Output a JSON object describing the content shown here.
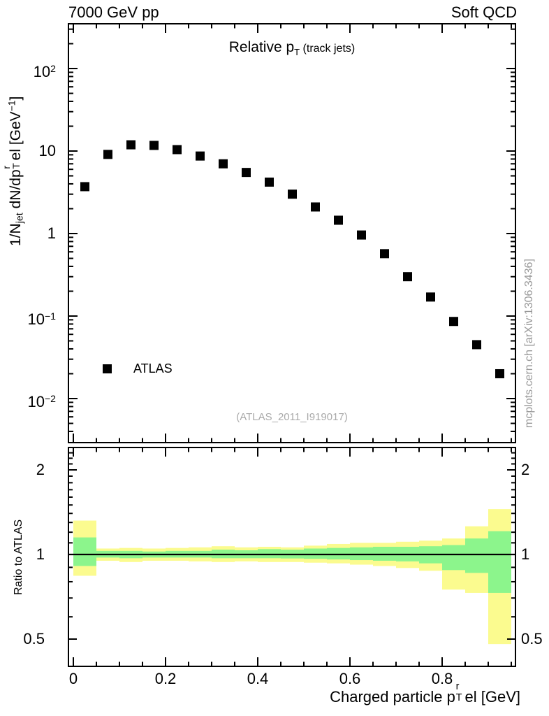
{
  "header": {
    "left": "7000 GeV pp",
    "right": "Soft QCD"
  },
  "titles": {
    "main_p1": "Relative p",
    "main_sub": "T",
    "main_p2": " (track jets)",
    "watermark": "(ATLAS_2011_I919017)",
    "side_note": "mcplots.cern.ch [arXiv:1306.3436]",
    "ratio_y": "Ratio to ATLAS",
    "x_parts": {
      "p1": "Charged particle p",
      "sup": "r",
      "sub": "T",
      "p2": "el [GeV]"
    },
    "y_parts": {
      "p1": "1/N",
      "sub1": "jet",
      "p2": " dN/dp",
      "sup": "r",
      "sub2": "T",
      "p3": "el [GeV",
      "sup2": "−1",
      "p4": "]"
    }
  },
  "legend": {
    "label": "ATLAS"
  },
  "colors": {
    "band_outer": "#fbfb8f",
    "band_inner": "#8cf58c",
    "marker": "#000000",
    "frame": "#000000",
    "watermark_text": "#a9a9a9",
    "side_note_text": "#999999"
  },
  "chart_data": {
    "type": "scatter",
    "title": "Relative pT (track jets)",
    "xlabel": "Charged particle pT^rel [GeV]",
    "ylabel": "1/Njet dN/dpT^rel [GeV^-1]",
    "x_scale": "linear",
    "y_scale": "log",
    "xlim": [
      -0.011,
      0.959
    ],
    "ylim": [
      0.0029,
      348
    ],
    "grid": false,
    "legend_position": "left-middle",
    "series": [
      {
        "name": "ATLAS",
        "marker": "filled-square",
        "color": "#000000",
        "x": [
          0.025,
          0.075,
          0.125,
          0.175,
          0.225,
          0.275,
          0.325,
          0.375,
          0.425,
          0.475,
          0.525,
          0.575,
          0.625,
          0.675,
          0.725,
          0.775,
          0.825,
          0.875,
          0.925
        ],
        "y": [
          3.7,
          9.1,
          11.9,
          11.7,
          10.4,
          8.7,
          7.0,
          5.5,
          4.2,
          3.0,
          2.1,
          1.45,
          0.96,
          0.57,
          0.3,
          0.17,
          0.086,
          0.045,
          0.02
        ]
      }
    ],
    "x_ticks": [
      {
        "v": 0,
        "label": "0"
      },
      {
        "v": 0.2,
        "label": "0.2"
      },
      {
        "v": 0.4,
        "label": "0.4"
      },
      {
        "v": 0.6,
        "label": "0.6"
      },
      {
        "v": 0.8,
        "label": "0.8"
      }
    ],
    "x_minor_step": 0.05,
    "y_ticks": [
      {
        "v": 100,
        "label": "10",
        "exp": "2"
      },
      {
        "v": 10,
        "label": "10",
        "exp": ""
      },
      {
        "v": 1,
        "label": "1",
        "exp": ""
      },
      {
        "v": 0.1,
        "label": "10",
        "exp": "−1"
      },
      {
        "v": 0.01,
        "label": "10",
        "exp": "−2"
      }
    ],
    "ratio_ticks": [
      {
        "v": 2,
        "label": "2"
      },
      {
        "v": 1,
        "label": "1"
      },
      {
        "v": 0.5,
        "label": "0.5"
      }
    ],
    "ratio": {
      "ylabel": "Ratio to ATLAS",
      "y_scale": "log",
      "ylim": [
        0.4,
        2.4
      ],
      "reference_line": 1,
      "bins": [
        {
          "x1": 0.0,
          "x2": 0.05,
          "outer": [
            0.84,
            1.32
          ],
          "inner": [
            0.91,
            1.15
          ]
        },
        {
          "x1": 0.05,
          "x2": 0.1,
          "outer": [
            0.95,
            1.05
          ],
          "inner": [
            0.975,
            1.03
          ]
        },
        {
          "x1": 0.1,
          "x2": 0.15,
          "outer": [
            0.94,
            1.055
          ],
          "inner": [
            0.97,
            1.03
          ]
        },
        {
          "x1": 0.15,
          "x2": 0.2,
          "outer": [
            0.95,
            1.05
          ],
          "inner": [
            0.975,
            1.025
          ]
        },
        {
          "x1": 0.2,
          "x2": 0.25,
          "outer": [
            0.95,
            1.055
          ],
          "inner": [
            0.975,
            1.03
          ]
        },
        {
          "x1": 0.25,
          "x2": 0.3,
          "outer": [
            0.945,
            1.06
          ],
          "inner": [
            0.975,
            1.03
          ]
        },
        {
          "x1": 0.3,
          "x2": 0.35,
          "outer": [
            0.94,
            1.07
          ],
          "inner": [
            0.97,
            1.04
          ]
        },
        {
          "x1": 0.35,
          "x2": 0.4,
          "outer": [
            0.945,
            1.06
          ],
          "inner": [
            0.97,
            1.035
          ]
        },
        {
          "x1": 0.4,
          "x2": 0.45,
          "outer": [
            0.94,
            1.065
          ],
          "inner": [
            0.97,
            1.045
          ]
        },
        {
          "x1": 0.45,
          "x2": 0.5,
          "outer": [
            0.94,
            1.06
          ],
          "inner": [
            0.968,
            1.04
          ]
        },
        {
          "x1": 0.5,
          "x2": 0.55,
          "outer": [
            0.935,
            1.075
          ],
          "inner": [
            0.965,
            1.05
          ]
        },
        {
          "x1": 0.55,
          "x2": 0.6,
          "outer": [
            0.93,
            1.09
          ],
          "inner": [
            0.96,
            1.055
          ]
        },
        {
          "x1": 0.6,
          "x2": 0.65,
          "outer": [
            0.92,
            1.1
          ],
          "inner": [
            0.955,
            1.06
          ]
        },
        {
          "x1": 0.65,
          "x2": 0.7,
          "outer": [
            0.91,
            1.1
          ],
          "inner": [
            0.95,
            1.065
          ]
        },
        {
          "x1": 0.7,
          "x2": 0.75,
          "outer": [
            0.895,
            1.11
          ],
          "inner": [
            0.945,
            1.065
          ]
        },
        {
          "x1": 0.75,
          "x2": 0.8,
          "outer": [
            0.875,
            1.12
          ],
          "inner": [
            0.93,
            1.07
          ]
        },
        {
          "x1": 0.8,
          "x2": 0.85,
          "outer": [
            0.75,
            1.14
          ],
          "inner": [
            0.88,
            1.08
          ]
        },
        {
          "x1": 0.85,
          "x2": 0.9,
          "outer": [
            0.73,
            1.26
          ],
          "inner": [
            0.86,
            1.14
          ]
        },
        {
          "x1": 0.9,
          "x2": 0.95,
          "outer": [
            0.48,
            1.45
          ],
          "inner": [
            0.73,
            1.21
          ]
        }
      ]
    }
  }
}
